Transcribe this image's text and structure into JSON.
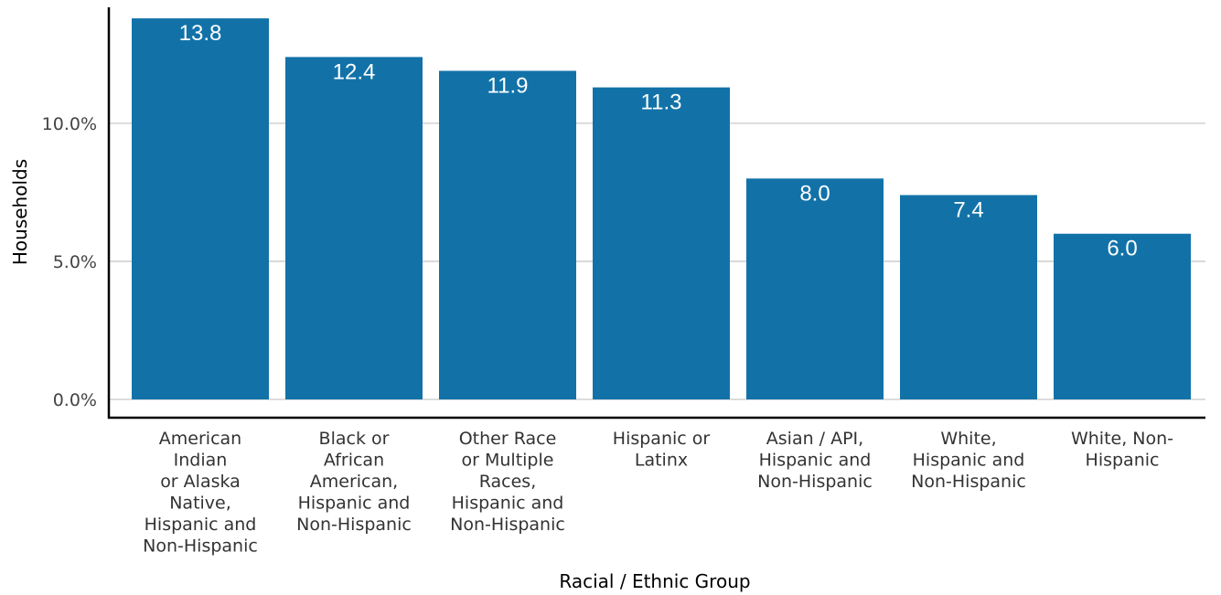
{
  "chart_data": {
    "type": "bar",
    "categories": [
      [
        "American",
        "Indian",
        "or Alaska",
        "Native,",
        "Hispanic and",
        "Non-Hispanic"
      ],
      [
        "Black or",
        "African",
        "American,",
        "Hispanic and",
        "Non-Hispanic"
      ],
      [
        "Other Race",
        "or Multiple",
        "Races,",
        "Hispanic and",
        "Non-Hispanic"
      ],
      [
        "Hispanic or",
        "Latinx"
      ],
      [
        "Asian / API,",
        "Hispanic and",
        "Non-Hispanic"
      ],
      [
        "White,",
        "Hispanic and",
        "Non-Hispanic"
      ],
      [
        "White, Non-",
        "Hispanic"
      ]
    ],
    "values": [
      13.8,
      12.4,
      11.9,
      11.3,
      8.0,
      7.4,
      6.0
    ],
    "data_labels": [
      "13.8",
      "12.4",
      "11.9",
      "11.3",
      "8.0",
      "7.4",
      "6.0"
    ],
    "title": "",
    "xlabel": "Racial / Ethnic Group",
    "ylabel": "Households",
    "ylim": [
      0,
      14.2
    ],
    "yticks": [
      0,
      5,
      10
    ],
    "ytick_labels": [
      "0.0%",
      "5.0%",
      "10.0%"
    ],
    "grid": true,
    "bar_color": "#1272a8",
    "grid_color": "#c8c8c8"
  }
}
